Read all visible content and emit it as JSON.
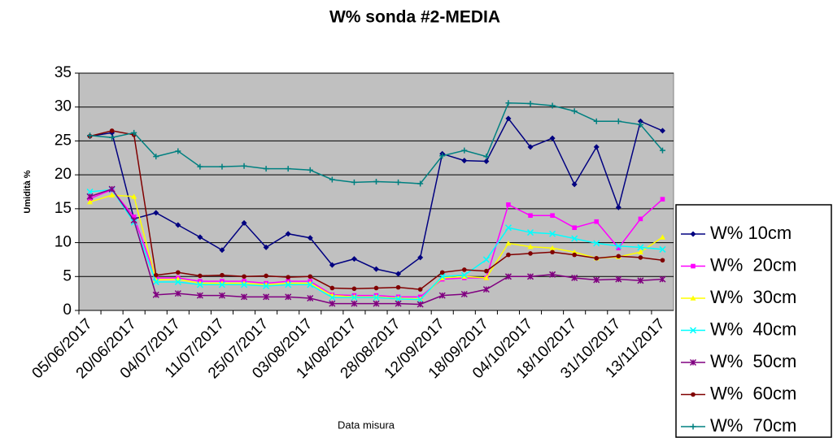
{
  "chart_data": {
    "type": "line",
    "title": "W% sonda #2-MEDIA",
    "x_label": "Data misura",
    "y_label": "Umidità %",
    "categories": [
      "05/06/2017",
      null,
      "20/06/2017",
      null,
      "04/07/2017",
      null,
      "11/07/2017",
      null,
      "25/07/2017",
      null,
      "03/08/2017",
      null,
      "14/08/2017",
      null,
      "28/08/2017",
      null,
      "12/09/2017",
      null,
      "18/09/2017",
      null,
      "04/10/2017",
      null,
      "18/10/2017",
      null,
      "31/10/2017",
      null,
      "13/11/2017"
    ],
    "ylim": [
      0,
      35
    ],
    "yticks": [
      0,
      5,
      10,
      15,
      20,
      25,
      30,
      35
    ],
    "grid": true,
    "plot_background": "#c0c0c0",
    "series": [
      {
        "name": "W% 10cm",
        "color": "#000080",
        "marker": "diamond",
        "values": [
          25.7,
          26.2,
          13.5,
          14.4,
          12.6,
          10.8,
          8.9,
          12.9,
          9.3,
          11.3,
          10.7,
          6.7,
          7.6,
          6.1,
          5.4,
          7.8,
          23.1,
          22.1,
          22.0,
          28.3,
          24.1,
          25.4,
          18.6,
          24.1,
          15.2,
          27.9,
          26.5
        ]
      },
      {
        "name": "W%  20cm",
        "color": "#ff00ff",
        "marker": "square",
        "values": [
          16.5,
          17.8,
          13.8,
          4.8,
          4.8,
          4.3,
          4.3,
          4.3,
          4.0,
          4.3,
          4.3,
          2.3,
          2.2,
          2.2,
          2.0,
          2.0,
          4.6,
          4.8,
          4.8,
          15.6,
          14.0,
          14.0,
          12.2,
          13.1,
          9.2,
          13.5,
          16.4
        ]
      },
      {
        "name": "W%  30cm",
        "color": "#ffff00",
        "marker": "triangle",
        "values": [
          16.0,
          17.0,
          16.8,
          4.5,
          4.6,
          4.0,
          4.0,
          4.0,
          3.8,
          4.0,
          4.0,
          2.2,
          2.0,
          2.0,
          1.8,
          1.7,
          4.8,
          5.0,
          4.8,
          9.9,
          9.4,
          9.2,
          8.6,
          7.7,
          7.9,
          8.6,
          10.8
        ]
      },
      {
        "name": "W%  40cm",
        "color": "#00ffff",
        "marker": "x",
        "values": [
          17.5,
          17.8,
          13.0,
          4.2,
          4.2,
          3.8,
          3.8,
          3.8,
          3.6,
          3.8,
          3.8,
          1.9,
          1.9,
          1.9,
          1.7,
          1.6,
          5.0,
          5.2,
          7.5,
          12.2,
          11.5,
          11.3,
          10.6,
          9.9,
          9.5,
          9.3,
          9.0
        ]
      },
      {
        "name": "W%  50cm",
        "color": "#800080",
        "marker": "star",
        "values": [
          16.8,
          17.9,
          13.3,
          2.3,
          2.5,
          2.2,
          2.2,
          2.0,
          2.0,
          2.0,
          1.8,
          1.0,
          1.0,
          1.0,
          1.0,
          0.9,
          2.2,
          2.4,
          3.1,
          5.0,
          5.0,
          5.3,
          4.8,
          4.5,
          4.6,
          4.4,
          4.6
        ]
      },
      {
        "name": "W%  60cm",
        "color": "#800000",
        "marker": "circle",
        "values": [
          25.7,
          26.5,
          25.9,
          5.2,
          5.6,
          5.1,
          5.2,
          5.0,
          5.1,
          4.9,
          5.0,
          3.3,
          3.2,
          3.3,
          3.4,
          3.1,
          5.6,
          6.0,
          5.8,
          8.2,
          8.4,
          8.6,
          8.2,
          7.7,
          8.0,
          7.8,
          7.4
        ]
      },
      {
        "name": "W%  70cm",
        "color": "#008080",
        "marker": "plus",
        "values": [
          25.8,
          25.5,
          26.2,
          22.7,
          23.5,
          21.2,
          21.2,
          21.3,
          20.9,
          20.9,
          20.7,
          19.3,
          18.9,
          19.0,
          18.9,
          18.7,
          22.8,
          23.6,
          22.7,
          30.6,
          30.5,
          30.2,
          29.4,
          27.9,
          27.9,
          27.4,
          23.6
        ]
      }
    ]
  }
}
